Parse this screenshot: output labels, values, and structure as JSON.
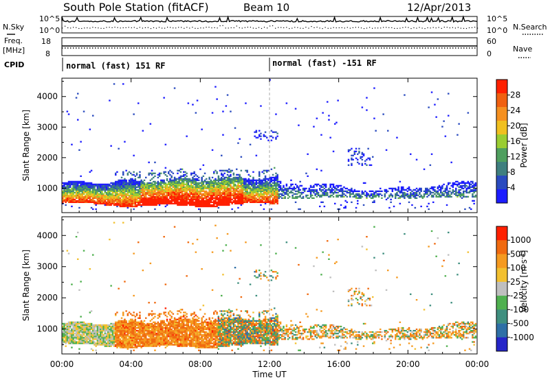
{
  "header": {
    "station": "South Pole Station (fitACF)",
    "beam": "Beam 10",
    "date": "12/Apr/2013"
  },
  "side_labels": {
    "nsky": "N.Sky",
    "nsearch": "N.Search",
    "freq_line1": "Freq.",
    "freq_line2": "[MHz]",
    "nave": "Nave",
    "cpid": "CPID"
  },
  "noise_panel": {
    "left_ticks": [
      "10^5",
      "10^0"
    ],
    "right_ticks": [
      "10^5",
      "10^0"
    ]
  },
  "freq_panel": {
    "left_ticks": [
      "18",
      "8"
    ],
    "right_ticks": [
      "60",
      "0"
    ]
  },
  "cpid_panel": {
    "segments": [
      "normal (fast) 151 RF",
      "normal (fast) -151 RF"
    ],
    "switch_hour": 12
  },
  "colors": {
    "power_scale": [
      "#1c1cff",
      "#2a4bbf",
      "#3f7f7f",
      "#4f9f5f",
      "#9acd32",
      "#f0c020",
      "#f59020",
      "#f06010",
      "#ff2000"
    ],
    "velocity_scale": [
      "#2525c8",
      "#2e6fa6",
      "#3f8f7f",
      "#4fb04f",
      "#bfbfbf",
      "#f2c030",
      "#f59a20",
      "#f06a10",
      "#ff2000"
    ]
  },
  "chart_data": [
    {
      "type": "heatmap",
      "title": "Power",
      "xlabel": "",
      "ylabel": "Slant Range [km]",
      "x_ticks": [
        "00:00",
        "04:00",
        "08:00",
        "12:00",
        "16:00",
        "20:00",
        "00:00"
      ],
      "xlim_hours": [
        0,
        24
      ],
      "y_ticks": [
        1000,
        2000,
        3000,
        4000
      ],
      "ylim": [
        200,
        4600
      ],
      "colorbar": {
        "label": "Power [dB]",
        "ticks": [
          "28",
          "24",
          "20",
          "16",
          "12",
          "8",
          "4"
        ],
        "range": [
          0,
          32
        ]
      },
      "echo_bands": [
        {
          "hours": [
            0,
            12.5
          ],
          "range_km": [
            450,
            1350
          ],
          "power_db": "high"
        },
        {
          "hours": [
            12.5,
            24
          ],
          "range_km": [
            600,
            1300
          ],
          "power_db": "low"
        }
      ]
    },
    {
      "type": "heatmap",
      "title": "Velocity",
      "xlabel": "Time UT",
      "ylabel": "Slant Range [km]",
      "x_ticks": [
        "00:00",
        "04:00",
        "08:00",
        "12:00",
        "16:00",
        "20:00",
        "00:00"
      ],
      "xlim_hours": [
        0,
        24
      ],
      "y_ticks": [
        1000,
        2000,
        3000,
        4000
      ],
      "ylim": [
        200,
        4600
      ],
      "colorbar": {
        "label": "Velocity [m s",
        "label_sup": "-1",
        "label_end": "]",
        "ticks": [
          "1000",
          "500",
          "100",
          "25",
          "-25",
          "-100",
          "-500",
          "-1000"
        ]
      }
    }
  ]
}
